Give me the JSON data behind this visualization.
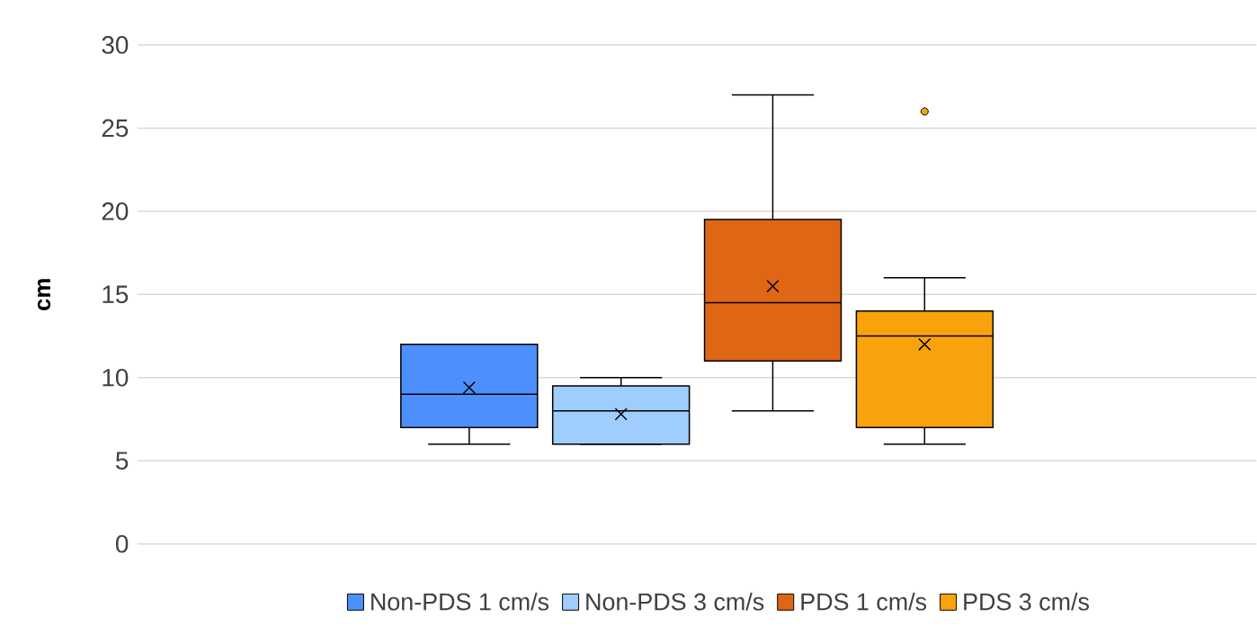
{
  "chart_data": {
    "type": "box",
    "ylabel": "cm",
    "categories": [
      null
    ],
    "ylim": [
      0,
      30
    ],
    "yticks": [
      0,
      5,
      10,
      15,
      20,
      25,
      30
    ],
    "grid": "y",
    "legend": "bottom",
    "marker": "cross",
    "series": [
      {
        "name": "Non-PDS 1 cm/s",
        "color": "#4d8ffd",
        "boxes": [
          {
            "low": 6,
            "q1": 7,
            "median": 9,
            "q3": 12,
            "high": 12,
            "mean": 9.4
          }
        ]
      },
      {
        "name": "Non-PDS 3 cm/s",
        "color": "#9fcdfd",
        "boxes": [
          {
            "low": 6,
            "q1": 6,
            "median": 8,
            "q3": 9.5,
            "high": 10,
            "mean": 7.8
          }
        ]
      },
      {
        "name": "PDS 1 cm/s",
        "color": "#df6614",
        "boxes": [
          {
            "low": 8,
            "q1": 11,
            "median": 14.5,
            "q3": 19.5,
            "high": 27,
            "mean": 15.5
          }
        ]
      },
      {
        "name": "PDS 3 cm/s",
        "color": "#f9a30c",
        "boxes": [
          {
            "low": 6,
            "q1": 7,
            "median": 12.5,
            "q3": 14,
            "high": 16,
            "mean": 12,
            "outliers": [
              26
            ]
          }
        ]
      }
    ]
  }
}
